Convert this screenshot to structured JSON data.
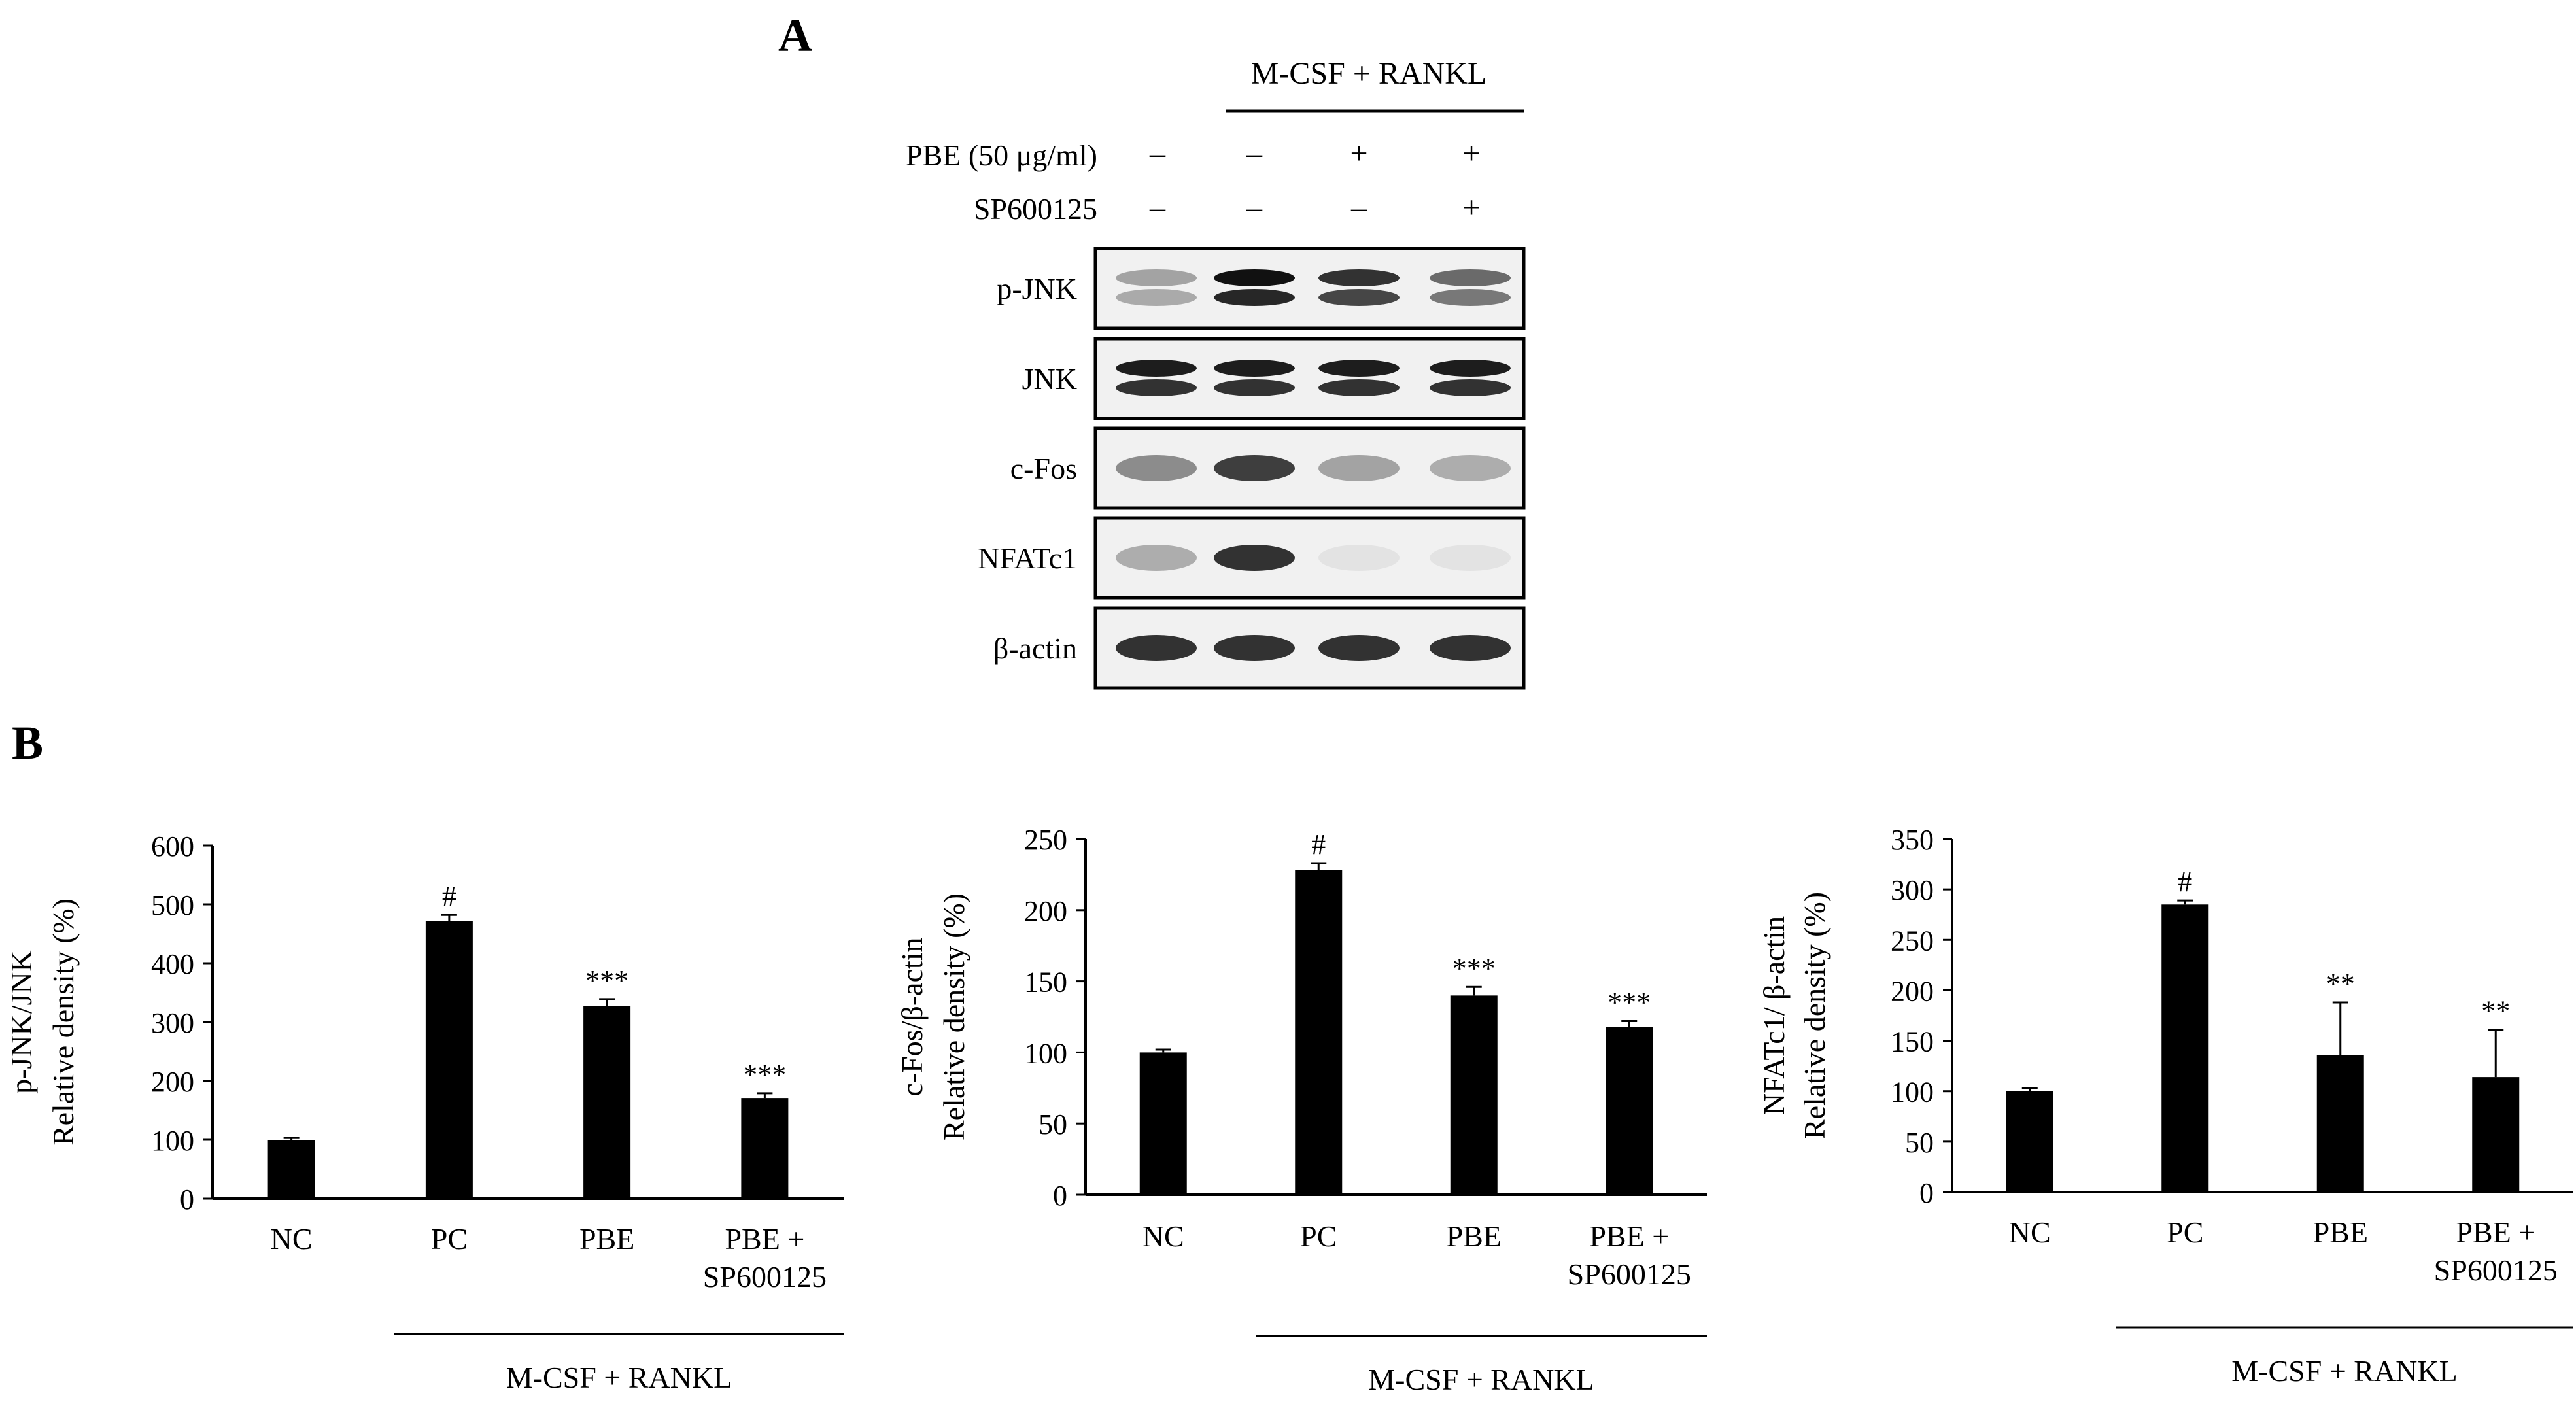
{
  "panel_a": {
    "letter": "A",
    "treatment_group": "M-CSF + RANKL",
    "rows": [
      {
        "label": "PBE (50 μg/ml)",
        "signs": [
          "–",
          "–",
          "+",
          "+"
        ]
      },
      {
        "label": "SP600125",
        "signs": [
          "–",
          "–",
          "–",
          "+"
        ]
      }
    ],
    "blots": [
      {
        "label": "p-JNK",
        "bands": [
          0.35,
          1.0,
          0.85,
          0.6
        ],
        "double": true
      },
      {
        "label": "JNK",
        "bands": [
          0.95,
          0.95,
          0.95,
          0.95
        ],
        "double": true
      },
      {
        "label": "c-Fos",
        "bands": [
          0.45,
          0.8,
          0.35,
          0.3
        ],
        "double": false
      },
      {
        "label": "NFATc1",
        "bands": [
          0.3,
          0.85,
          0.06,
          0.06
        ],
        "double": false
      },
      {
        "label": "β-actin",
        "bands": [
          0.85,
          0.85,
          0.85,
          0.85
        ],
        "double": false
      }
    ]
  },
  "panel_b": {
    "letter": "B"
  },
  "chart_data": [
    {
      "type": "bar",
      "categories": [
        "NC",
        "PC",
        "PBE",
        "PBE + SP600125"
      ],
      "values": [
        100,
        472,
        327,
        171
      ],
      "errors": [
        3,
        10,
        12,
        8
      ],
      "annotations": [
        "",
        "#",
        "***",
        "***"
      ],
      "ylabel": [
        "p-JNK/JNK",
        "Relative density (%)"
      ],
      "ylim": [
        0,
        600
      ],
      "yticks": [
        0,
        100,
        200,
        300,
        400,
        500,
        600
      ],
      "group_label": "M-CSF + RANKL",
      "color": "#000000"
    },
    {
      "type": "bar",
      "categories": [
        "NC",
        "PC",
        "PBE",
        "PBE + SP600125"
      ],
      "values": [
        100,
        228,
        140,
        118
      ],
      "errors": [
        2,
        5,
        6,
        4
      ],
      "annotations": [
        "",
        "#",
        "***",
        "***"
      ],
      "ylabel": [
        "c-Fos/β-actin",
        "Relative density (%)"
      ],
      "ylim": [
        0,
        250
      ],
      "yticks": [
        0,
        50,
        100,
        150,
        200,
        250
      ],
      "group_label": "M-CSF + RANKL",
      "color": "#000000"
    },
    {
      "type": "bar",
      "categories": [
        "NC",
        "PC",
        "PBE",
        "PBE + SP600125"
      ],
      "values": [
        100,
        285,
        136,
        114
      ],
      "errors": [
        3,
        4,
        52,
        47
      ],
      "annotations": [
        "",
        "#",
        "**",
        "**"
      ],
      "ylabel": [
        "NFATc1/ β-actin",
        "Relative density (%)"
      ],
      "ylim": [
        0,
        350
      ],
      "yticks": [
        0,
        50,
        100,
        150,
        200,
        250,
        300,
        350
      ],
      "group_label": "M-CSF + RANKL",
      "color": "#000000"
    }
  ]
}
